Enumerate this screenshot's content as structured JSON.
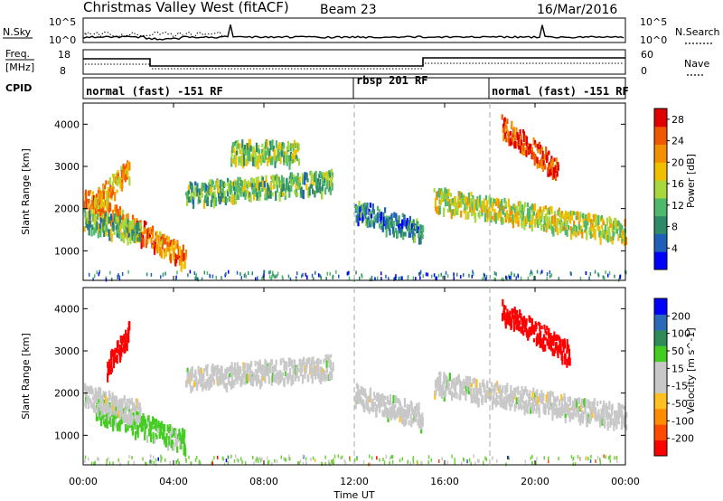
{
  "header": {
    "station": "Christmas Valley West (fitACF)",
    "beam": "Beam 23",
    "date": "16/Mar/2016"
  },
  "noise_panel": {
    "left_label": "N.Sky",
    "left_ticks": [
      "10^5",
      "10^0"
    ],
    "right_label": "N.Search",
    "right_ticks": [
      "10^5",
      "10^0"
    ]
  },
  "freq_panel": {
    "left_label_1": "Freq.",
    "left_label_2": "[MHz]",
    "left_ticks": [
      "18",
      "8"
    ],
    "right_label": "Nave",
    "right_ticks": [
      "60",
      "0"
    ]
  },
  "cpid": {
    "label": "CPID",
    "segments": [
      {
        "text": "normal (fast) -151 RF",
        "start_ut": 0
      },
      {
        "text": "rbsp 201 RF",
        "start_ut": 12
      },
      {
        "text": "normal (fast) -151 RF",
        "start_ut": 18
      }
    ]
  },
  "colors": {
    "power_scale": [
      "#0000ff",
      "#1f5fb8",
      "#2f8a6a",
      "#4fb86a",
      "#a8d83c",
      "#f0c000",
      "#f29000",
      "#f05800",
      "#e00000"
    ],
    "velocity_scale": [
      "#ff0000",
      "#ff4a00",
      "#ff8c00",
      "#ffc020",
      "#c8c8c8",
      "#c8c8c8",
      "#44cc22",
      "#2f8a5a",
      "#2a6ab8",
      "#0000ff"
    ],
    "ground_scatter": "#c8c8c8"
  },
  "chart_data": [
    {
      "type": "heatmap",
      "title": "",
      "xlabel": "Time UT",
      "ylabel": "Slant Range [km]",
      "xlim": [
        0,
        24
      ],
      "ylim": [
        300,
        4500
      ],
      "x_ticks": [
        "00:00",
        "04:00",
        "08:00",
        "12:00",
        "16:00",
        "20:00",
        "00:00"
      ],
      "y_ticks": [
        1000,
        2000,
        3000,
        4000
      ],
      "colorbar_label": "Power [dB]",
      "colorbar_ticks": [
        4,
        8,
        12,
        16,
        20,
        24,
        28
      ],
      "colorbar_range": [
        0,
        30
      ],
      "cpid_change_ut": [
        12,
        18
      ],
      "features": [
        {
          "ut_start": 0.0,
          "ut_end": 4.5,
          "range_start_km": 2300,
          "range_end_km": 900,
          "power_db": 22
        },
        {
          "ut_start": 0.0,
          "ut_end": 2.5,
          "range_start_km": 1800,
          "range_end_km": 1500,
          "power_db": 12
        },
        {
          "ut_start": 0.5,
          "ut_end": 2.0,
          "range_start_km": 2200,
          "range_end_km": 3000,
          "power_db": 20
        },
        {
          "ut_start": 4.5,
          "ut_end": 11.0,
          "range_start_km": 2400,
          "range_end_km": 2700,
          "power_db": 12
        },
        {
          "ut_start": 6.5,
          "ut_end": 9.5,
          "range_start_km": 3400,
          "range_end_km": 3400,
          "power_db": 14
        },
        {
          "ut_start": 12.0,
          "ut_end": 15.0,
          "range_start_km": 2000,
          "range_end_km": 1500,
          "power_db": 8
        },
        {
          "ut_start": 15.5,
          "ut_end": 24.0,
          "range_start_km": 2300,
          "range_end_km": 1500,
          "power_db": 16
        },
        {
          "ut_start": 18.5,
          "ut_end": 21.0,
          "range_start_km": 4000,
          "range_end_km": 3000,
          "power_db": 26
        }
      ]
    },
    {
      "type": "heatmap",
      "title": "",
      "xlabel": "Time UT",
      "ylabel": "Slant Range [km]",
      "xlim": [
        0,
        24
      ],
      "ylim": [
        300,
        4500
      ],
      "x_ticks": [
        "00:00",
        "04:00",
        "08:00",
        "12:00",
        "16:00",
        "20:00",
        "00:00"
      ],
      "y_ticks": [
        1000,
        2000,
        3000,
        4000
      ],
      "colorbar_label": "Velocity [m s^-1]",
      "colorbar_ticks": [
        200,
        100,
        50,
        15,
        -15,
        -50,
        -100,
        -200
      ],
      "cpid_change_ut": [
        12,
        18
      ],
      "features": [
        {
          "ut_start": 0.5,
          "ut_end": 4.5,
          "range_start_km": 1700,
          "range_end_km": 900,
          "velocity_ms": 30
        },
        {
          "ut_start": 0.0,
          "ut_end": 2.5,
          "range_start_km": 2000,
          "range_end_km": 1600,
          "velocity_ms": 0
        },
        {
          "ut_start": 1.0,
          "ut_end": 2.0,
          "range_start_km": 2600,
          "range_end_km": 3600,
          "velocity_ms": -220
        },
        {
          "ut_start": 4.5,
          "ut_end": 11.0,
          "range_start_km": 2400,
          "range_end_km": 2700,
          "velocity_ms": 0
        },
        {
          "ut_start": 12.0,
          "ut_end": 15.0,
          "range_start_km": 2000,
          "range_end_km": 1500,
          "velocity_ms": 0
        },
        {
          "ut_start": 15.5,
          "ut_end": 24.0,
          "range_start_km": 2300,
          "range_end_km": 1500,
          "velocity_ms": 0
        },
        {
          "ut_start": 18.5,
          "ut_end": 21.5,
          "range_start_km": 4000,
          "range_end_km": 3000,
          "velocity_ms": -220
        }
      ]
    }
  ]
}
